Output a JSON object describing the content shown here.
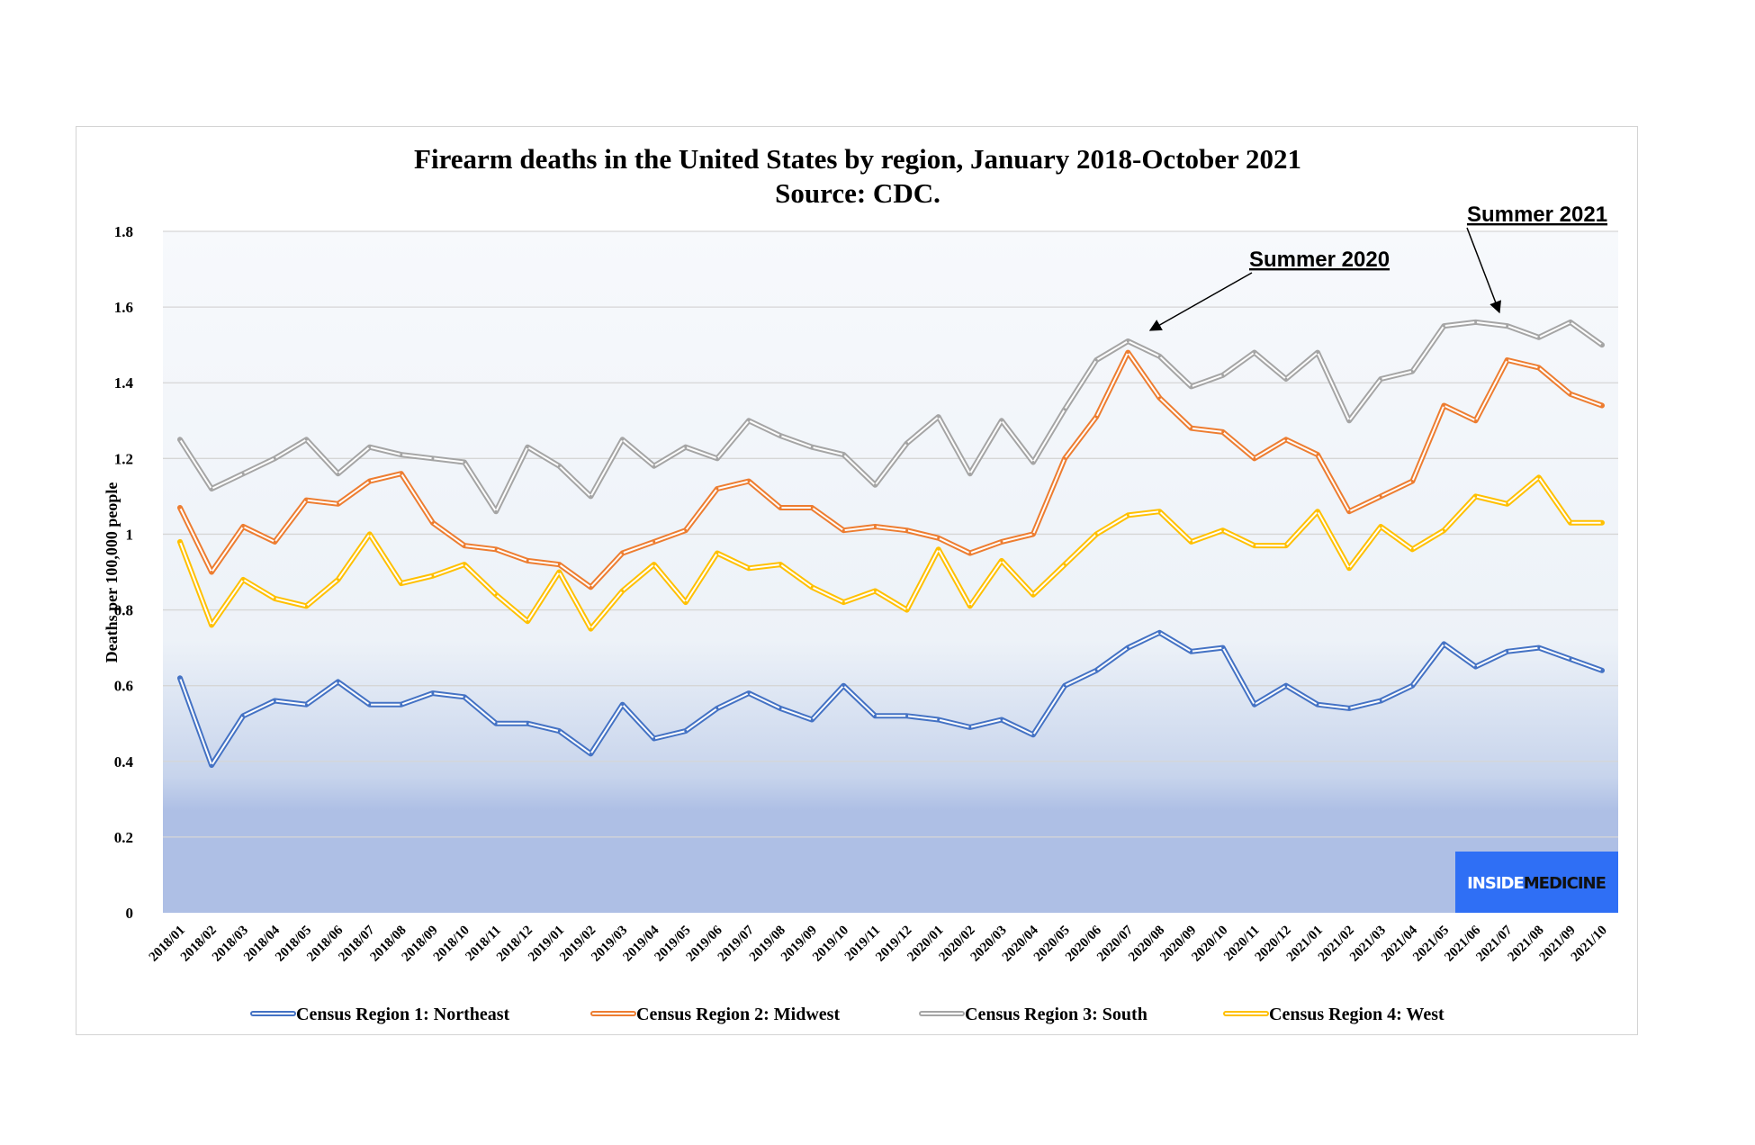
{
  "chart_data": {
    "type": "line",
    "title": "Firearm deaths in the United States by region, January 2018-October 2021",
    "subtitle": "Source: CDC.",
    "xlabel": "",
    "ylabel": "Deaths per 100,000 people",
    "ylim": [
      0,
      1.8
    ],
    "yticks": [
      "0",
      "0.2",
      "0.4",
      "0.6",
      "0.8",
      "1",
      "1.2",
      "1.4",
      "1.6",
      "1.8"
    ],
    "grid": true,
    "legend_position": "bottom",
    "categories": [
      "2018/01",
      "2018/02",
      "2018/03",
      "2018/04",
      "2018/05",
      "2018/06",
      "2018/07",
      "2018/08",
      "2018/09",
      "2018/10",
      "2018/11",
      "2018/12",
      "2019/01",
      "2019/02",
      "2019/03",
      "2019/04",
      "2019/05",
      "2019/06",
      "2019/07",
      "2019/08",
      "2019/09",
      "2019/10",
      "2019/11",
      "2019/12",
      "2020/01",
      "2020/02",
      "2020/03",
      "2020/04",
      "2020/05",
      "2020/06",
      "2020/07",
      "2020/08",
      "2020/09",
      "2020/10",
      "2020/11",
      "2020/12",
      "2021/01",
      "2021/02",
      "2021/03",
      "2021/04",
      "2021/05",
      "2021/06",
      "2021/07",
      "2021/08",
      "2021/09",
      "2021/10"
    ],
    "series": [
      {
        "name": "Census Region 1: Northeast",
        "color": "#4472c4",
        "values": [
          0.62,
          0.39,
          0.52,
          0.56,
          0.55,
          0.61,
          0.55,
          0.55,
          0.58,
          0.57,
          0.5,
          0.5,
          0.48,
          0.42,
          0.55,
          0.46,
          0.48,
          0.54,
          0.58,
          0.54,
          0.51,
          0.6,
          0.52,
          0.52,
          0.51,
          0.49,
          0.51,
          0.47,
          0.6,
          0.64,
          0.7,
          0.74,
          0.69,
          0.7,
          0.55,
          0.6,
          0.55,
          0.54,
          0.56,
          0.6,
          0.71,
          0.65,
          0.69,
          0.7,
          0.67,
          0.64
        ]
      },
      {
        "name": "Census Region 2: Midwest",
        "color": "#ed7d31",
        "values": [
          1.07,
          0.9,
          1.02,
          0.98,
          1.09,
          1.08,
          1.14,
          1.16,
          1.03,
          0.97,
          0.96,
          0.93,
          0.92,
          0.86,
          0.95,
          0.98,
          1.01,
          1.12,
          1.14,
          1.07,
          1.07,
          1.01,
          1.02,
          1.01,
          0.99,
          0.95,
          0.98,
          1.0,
          1.2,
          1.31,
          1.48,
          1.36,
          1.28,
          1.27,
          1.2,
          1.25,
          1.21,
          1.06,
          1.1,
          1.14,
          1.34,
          1.3,
          1.46,
          1.44,
          1.37,
          1.34
        ]
      },
      {
        "name": "Census Region 3: South",
        "color": "#a5a5a5",
        "values": [
          1.25,
          1.12,
          1.16,
          1.2,
          1.25,
          1.16,
          1.23,
          1.21,
          1.2,
          1.19,
          1.06,
          1.23,
          1.18,
          1.1,
          1.25,
          1.18,
          1.23,
          1.2,
          1.3,
          1.26,
          1.23,
          1.21,
          1.13,
          1.24,
          1.31,
          1.16,
          1.3,
          1.19,
          1.33,
          1.46,
          1.51,
          1.47,
          1.39,
          1.42,
          1.48,
          1.41,
          1.48,
          1.3,
          1.41,
          1.43,
          1.55,
          1.56,
          1.55,
          1.52,
          1.56,
          1.5
        ]
      },
      {
        "name": "Census Region 4: West",
        "color": "#ffc000",
        "values": [
          0.98,
          0.76,
          0.88,
          0.83,
          0.81,
          0.88,
          1.0,
          0.87,
          0.89,
          0.92,
          0.84,
          0.77,
          0.9,
          0.75,
          0.85,
          0.92,
          0.82,
          0.95,
          0.91,
          0.92,
          0.86,
          0.82,
          0.85,
          0.8,
          0.96,
          0.81,
          0.93,
          0.84,
          0.92,
          1.0,
          1.05,
          1.06,
          0.98,
          1.01,
          0.97,
          0.97,
          1.06,
          0.91,
          1.02,
          0.96,
          1.01,
          1.1,
          1.08,
          1.15,
          1.03,
          1.03
        ]
      }
    ],
    "annotations": [
      {
        "text": "Summer 2020",
        "target": "2020/07"
      },
      {
        "text": "Summer 2021",
        "target": "2021/07"
      }
    ]
  },
  "watermark": {
    "part1": "INSIDE",
    "part2": "MEDICINE",
    "bg_color": "#2f6ff5"
  }
}
